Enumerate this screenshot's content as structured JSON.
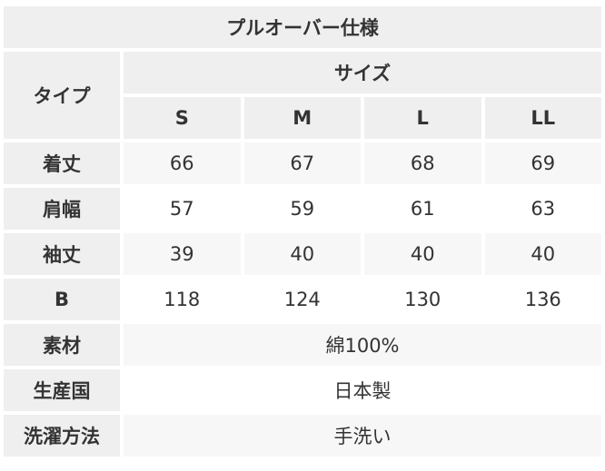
{
  "title": "プルオーバー仕様",
  "type_label": "タイプ",
  "size_label": "サイズ",
  "sizes": [
    "S",
    "M",
    "L",
    "LL"
  ],
  "rows": [
    {
      "label": "着丈",
      "values": [
        "66",
        "67",
        "68",
        "69"
      ]
    },
    {
      "label": "肩幅",
      "values": [
        "57",
        "59",
        "61",
        "63"
      ]
    },
    {
      "label": "袖丈",
      "values": [
        "39",
        "40",
        "40",
        "40"
      ]
    },
    {
      "label": "B",
      "values": [
        "118",
        "124",
        "130",
        "136"
      ]
    }
  ],
  "info": [
    {
      "label": "素材",
      "value": "綿100%"
    },
    {
      "label": "生産国",
      "value": "日本製"
    },
    {
      "label": "洗濯方法",
      "value": "手洗い"
    }
  ],
  "colors": {
    "header_bg": "#efefef",
    "cell_bg": "#f7f7f7",
    "text": "#333333"
  }
}
